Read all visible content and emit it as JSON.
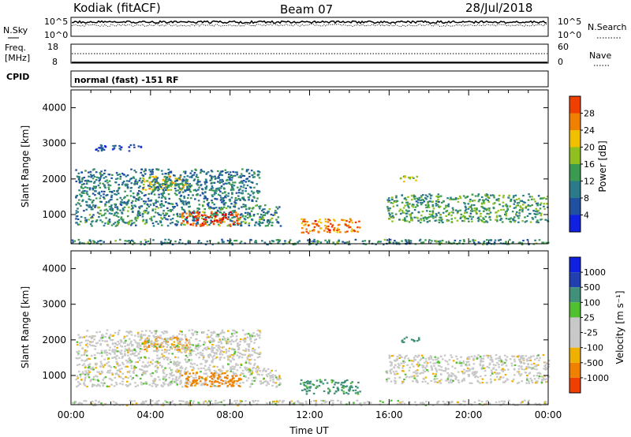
{
  "header": {
    "station": "Kodiak (fitACF)",
    "beam": "Beam 07",
    "date": "28/Jul/2018"
  },
  "nsky_panel": {
    "left_label": "N.Sky",
    "right_label": "N.Search",
    "left_ticks": [
      "10^5",
      "10^0"
    ],
    "right_ticks": [
      "10^5",
      "10^0"
    ]
  },
  "freq_panel": {
    "left_label_line1": "Freq.",
    "left_label_line2": "[MHz]",
    "right_label": "Nave",
    "left_ticks": [
      "18",
      "8"
    ],
    "right_ticks": [
      "60",
      "0"
    ],
    "freq_mhz": 8.3,
    "nave": 30
  },
  "cpid_panel": {
    "label": "CPID",
    "value": "normal (fast) -151 RF"
  },
  "colors": {
    "power_scale": [
      "#1020e0",
      "#2050a0",
      "#2a7a8a",
      "#3a9a50",
      "#90c020",
      "#f0c000",
      "#f08000",
      "#f04000",
      "#e00000"
    ],
    "velocity_scale": [
      "#e00000",
      "#f04000",
      "#f08000",
      "#f0b000",
      "#c8c8c8",
      "#c8c8c8",
      "#50c030",
      "#40907a",
      "#2040b0",
      "#1020e0"
    ]
  },
  "chart_data": [
    {
      "type": "heatmap",
      "title": "",
      "xlabel": "",
      "ylabel": "Slant Range [km]",
      "xlim": [
        0,
        24
      ],
      "ylim": [
        180,
        4500
      ],
      "y_ticks": [
        "4000",
        "3000",
        "2000",
        "1000"
      ],
      "colorbar_label": "Power [dB]",
      "colorbar_ticks": [
        "28",
        "24",
        "20",
        "16",
        "12",
        "8",
        "4"
      ],
      "colorbar_range": [
        0,
        32
      ],
      "regions": [
        {
          "t": [
            0,
            24
          ],
          "r": [
            180,
            320
          ],
          "v": 10
        },
        {
          "t": [
            0.2,
            10.5
          ],
          "r": [
            700,
            1300
          ],
          "v": 10
        },
        {
          "t": [
            5.5,
            8.5
          ],
          "r": [
            700,
            1100
          ],
          "v": 26
        },
        {
          "t": [
            3.5,
            6.0
          ],
          "r": [
            1700,
            2100
          ],
          "v": 18
        },
        {
          "t": [
            0.2,
            9.5
          ],
          "r": [
            1300,
            2300
          ],
          "v": 9
        },
        {
          "t": [
            1.2,
            3.5
          ],
          "r": [
            2800,
            3000
          ],
          "v": 6
        },
        {
          "t": [
            11.5,
            14.5
          ],
          "r": [
            500,
            900
          ],
          "v": 24
        },
        {
          "t": [
            15.8,
            24
          ],
          "r": [
            800,
            1600
          ],
          "v": 12
        },
        {
          "t": [
            16.5,
            17.5
          ],
          "r": [
            1950,
            2100
          ],
          "v": 18
        }
      ]
    },
    {
      "type": "heatmap",
      "title": "",
      "xlabel": "Time UT",
      "ylabel": "Slant Range [km]",
      "xlim": [
        0,
        24
      ],
      "ylim": [
        180,
        4500
      ],
      "x_ticks": [
        "00:00",
        "04:00",
        "08:00",
        "12:00",
        "16:00",
        "20:00",
        "00:00"
      ],
      "y_ticks": [
        "4000",
        "3000",
        "2000",
        "1000"
      ],
      "colorbar_label": "Velocity [m s⁻¹]",
      "colorbar_ticks": [
        "1000",
        "500",
        "100",
        "25",
        "-25",
        "-100",
        "-500",
        "-1000"
      ],
      "regions": [
        {
          "t": [
            0,
            24
          ],
          "r": [
            180,
            320
          ],
          "v": 0
        },
        {
          "t": [
            0.2,
            10.5
          ],
          "r": [
            700,
            1300
          ],
          "v": 0
        },
        {
          "t": [
            5.5,
            8.5
          ],
          "r": [
            700,
            1100
          ],
          "v": -150
        },
        {
          "t": [
            3.5,
            6.0
          ],
          "r": [
            1700,
            2100
          ],
          "v": -100
        },
        {
          "t": [
            0.2,
            9.5
          ],
          "r": [
            1300,
            2300
          ],
          "v": 0
        },
        {
          "t": [
            11.5,
            14.5
          ],
          "r": [
            500,
            900
          ],
          "v": 120
        },
        {
          "t": [
            15.8,
            24
          ],
          "r": [
            800,
            1600
          ],
          "v": 0
        },
        {
          "t": [
            16.5,
            17.5
          ],
          "r": [
            1950,
            2100
          ],
          "v": 400
        }
      ]
    }
  ]
}
